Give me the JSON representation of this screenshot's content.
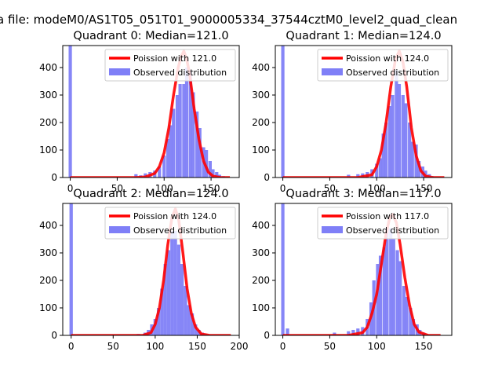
{
  "figure": {
    "suptitle": "a file: modeM0/AS1T05_051T01_9000005334_37544cztM0_level2_quad_clean"
  },
  "colors": {
    "poisson_line": "#ff0000",
    "histogram": "#7f7ff7",
    "background": "#ffffff"
  },
  "chart_data": [
    {
      "type": "bar",
      "title": "Quadrant 0: Median=121.0",
      "median": 121.0,
      "xlim": [
        -8,
        180
      ],
      "ylim": [
        0,
        480
      ],
      "xticks": [
        0,
        50,
        100,
        150
      ],
      "yticks": [
        0,
        100,
        200,
        300,
        400
      ],
      "legend": {
        "position": "top-right",
        "entries": [
          "Poission with 121.0",
          "Observed distribution"
        ]
      },
      "series": [
        {
          "name": "Observed distribution",
          "kind": "histogram",
          "bin_width": 3.5,
          "bins": [
            [
              0,
              480
            ],
            [
              70,
              12
            ],
            [
              75,
              8
            ],
            [
              80,
              15
            ],
            [
              85,
              20
            ],
            [
              90,
              25
            ],
            [
              95,
              40
            ],
            [
              100,
              80
            ],
            [
              104,
              140
            ],
            [
              107,
              190
            ],
            [
              110,
              250
            ],
            [
              114,
              300
            ],
            [
              117,
              340
            ],
            [
              121,
              340
            ],
            [
              124,
              400
            ],
            [
              128,
              390
            ],
            [
              131,
              310
            ],
            [
              135,
              240
            ],
            [
              138,
              180
            ],
            [
              142,
              110
            ],
            [
              145,
              100
            ],
            [
              149,
              60
            ],
            [
              152,
              30
            ],
            [
              156,
              20
            ],
            [
              159,
              10
            ],
            [
              163,
              5
            ]
          ]
        },
        {
          "name": "Poission with 121.0",
          "kind": "line",
          "x": [
            0,
            70,
            80,
            90,
            95,
            100,
            105,
            110,
            115,
            118,
            121,
            124,
            127,
            132,
            137,
            142,
            147,
            152,
            160,
            170
          ],
          "y": [
            0,
            0,
            2,
            15,
            40,
            90,
            180,
            300,
            400,
            440,
            460,
            430,
            380,
            250,
            140,
            60,
            20,
            5,
            0,
            0
          ]
        }
      ]
    },
    {
      "type": "bar",
      "title": "Quadrant 1: Median=124.0",
      "median": 124.0,
      "xlim": [
        -8,
        180
      ],
      "ylim": [
        0,
        480
      ],
      "xticks": [
        0,
        50,
        100,
        150
      ],
      "yticks": [
        0,
        100,
        200,
        300,
        400
      ],
      "legend": {
        "position": "top-right",
        "entries": [
          "Poission with 124.0",
          "Observed distribution"
        ]
      },
      "series": [
        {
          "name": "Observed distribution",
          "kind": "histogram",
          "bin_width": 3.5,
          "bins": [
            [
              0,
              480
            ],
            [
              70,
              10
            ],
            [
              80,
              12
            ],
            [
              85,
              15
            ],
            [
              90,
              20
            ],
            [
              95,
              30
            ],
            [
              100,
              50
            ],
            [
              104,
              70
            ],
            [
              107,
              160
            ],
            [
              110,
              200
            ],
            [
              114,
              260
            ],
            [
              117,
              300
            ],
            [
              121,
              390
            ],
            [
              124,
              340
            ],
            [
              128,
              300
            ],
            [
              131,
              270
            ],
            [
              135,
              200
            ],
            [
              138,
              130
            ],
            [
              142,
              120
            ],
            [
              145,
              60
            ],
            [
              149,
              40
            ],
            [
              152,
              25
            ],
            [
              156,
              12
            ],
            [
              159,
              5
            ]
          ]
        },
        {
          "name": "Poission with 124.0",
          "kind": "line",
          "x": [
            0,
            80,
            95,
            100,
            105,
            110,
            115,
            120,
            124,
            128,
            132,
            137,
            142,
            147,
            152,
            160,
            172
          ],
          "y": [
            0,
            0,
            10,
            40,
            100,
            200,
            330,
            430,
            460,
            420,
            330,
            180,
            80,
            25,
            5,
            0,
            0
          ]
        }
      ]
    },
    {
      "type": "bar",
      "title": "Quadrant 2: Median=124.0",
      "median": 124.0,
      "xlim": [
        -10,
        200
      ],
      "ylim": [
        0,
        480
      ],
      "xticks": [
        0,
        50,
        100,
        150,
        200
      ],
      "yticks": [
        0,
        100,
        200,
        300,
        400
      ],
      "legend": {
        "position": "top-right",
        "entries": [
          "Poission with 124.0",
          "Observed distribution"
        ]
      },
      "series": [
        {
          "name": "Observed distribution",
          "kind": "histogram",
          "bin_width": 4,
          "bins": [
            [
              0,
              480
            ],
            [
              80,
              5
            ],
            [
              88,
              10
            ],
            [
              92,
              20
            ],
            [
              96,
              40
            ],
            [
              100,
              60
            ],
            [
              104,
              100
            ],
            [
              108,
              170
            ],
            [
              112,
              260
            ],
            [
              116,
              310
            ],
            [
              120,
              380
            ],
            [
              124,
              380
            ],
            [
              128,
              330
            ],
            [
              132,
              260
            ],
            [
              136,
              180
            ],
            [
              140,
              110
            ],
            [
              144,
              80
            ],
            [
              148,
              40
            ],
            [
              152,
              20
            ],
            [
              156,
              10
            ],
            [
              160,
              5
            ]
          ]
        },
        {
          "name": "Poission with 124.0",
          "kind": "line",
          "x": [
            0,
            85,
            95,
            100,
            105,
            110,
            115,
            120,
            124,
            128,
            133,
            138,
            143,
            148,
            155,
            165,
            190
          ],
          "y": [
            0,
            0,
            10,
            40,
            100,
            200,
            330,
            430,
            460,
            420,
            300,
            170,
            80,
            30,
            5,
            0,
            0
          ]
        }
      ]
    },
    {
      "type": "bar",
      "title": "Quadrant 3: Median=117.0",
      "median": 117.0,
      "xlim": [
        -8,
        180
      ],
      "ylim": [
        0,
        480
      ],
      "xticks": [
        0,
        50,
        100,
        150
      ],
      "yticks": [
        0,
        100,
        200,
        300,
        400
      ],
      "legend": {
        "position": "top-right",
        "entries": [
          "Poission with 117.0",
          "Observed distribution"
        ]
      },
      "series": [
        {
          "name": "Observed distribution",
          "kind": "histogram",
          "bin_width": 3.5,
          "bins": [
            [
              0,
              480
            ],
            [
              5,
              25
            ],
            [
              55,
              10
            ],
            [
              70,
              15
            ],
            [
              75,
              20
            ],
            [
              80,
              25
            ],
            [
              85,
              30
            ],
            [
              90,
              60
            ],
            [
              94,
              120
            ],
            [
              97,
              200
            ],
            [
              101,
              260
            ],
            [
              104,
              290
            ],
            [
              108,
              320
            ],
            [
              111,
              390
            ],
            [
              115,
              390
            ],
            [
              118,
              350
            ],
            [
              122,
              310
            ],
            [
              125,
              270
            ],
            [
              129,
              180
            ],
            [
              132,
              140
            ],
            [
              136,
              100
            ],
            [
              139,
              60
            ],
            [
              143,
              40
            ],
            [
              146,
              20
            ],
            [
              150,
              10
            ]
          ]
        },
        {
          "name": "Poission with 117.0",
          "kind": "line",
          "x": [
            0,
            70,
            85,
            90,
            95,
            100,
            105,
            110,
            114,
            117,
            121,
            125,
            130,
            135,
            140,
            145,
            155,
            168
          ],
          "y": [
            0,
            0,
            10,
            30,
            80,
            150,
            260,
            370,
            430,
            440,
            410,
            330,
            210,
            110,
            40,
            12,
            0,
            0
          ]
        }
      ]
    }
  ]
}
